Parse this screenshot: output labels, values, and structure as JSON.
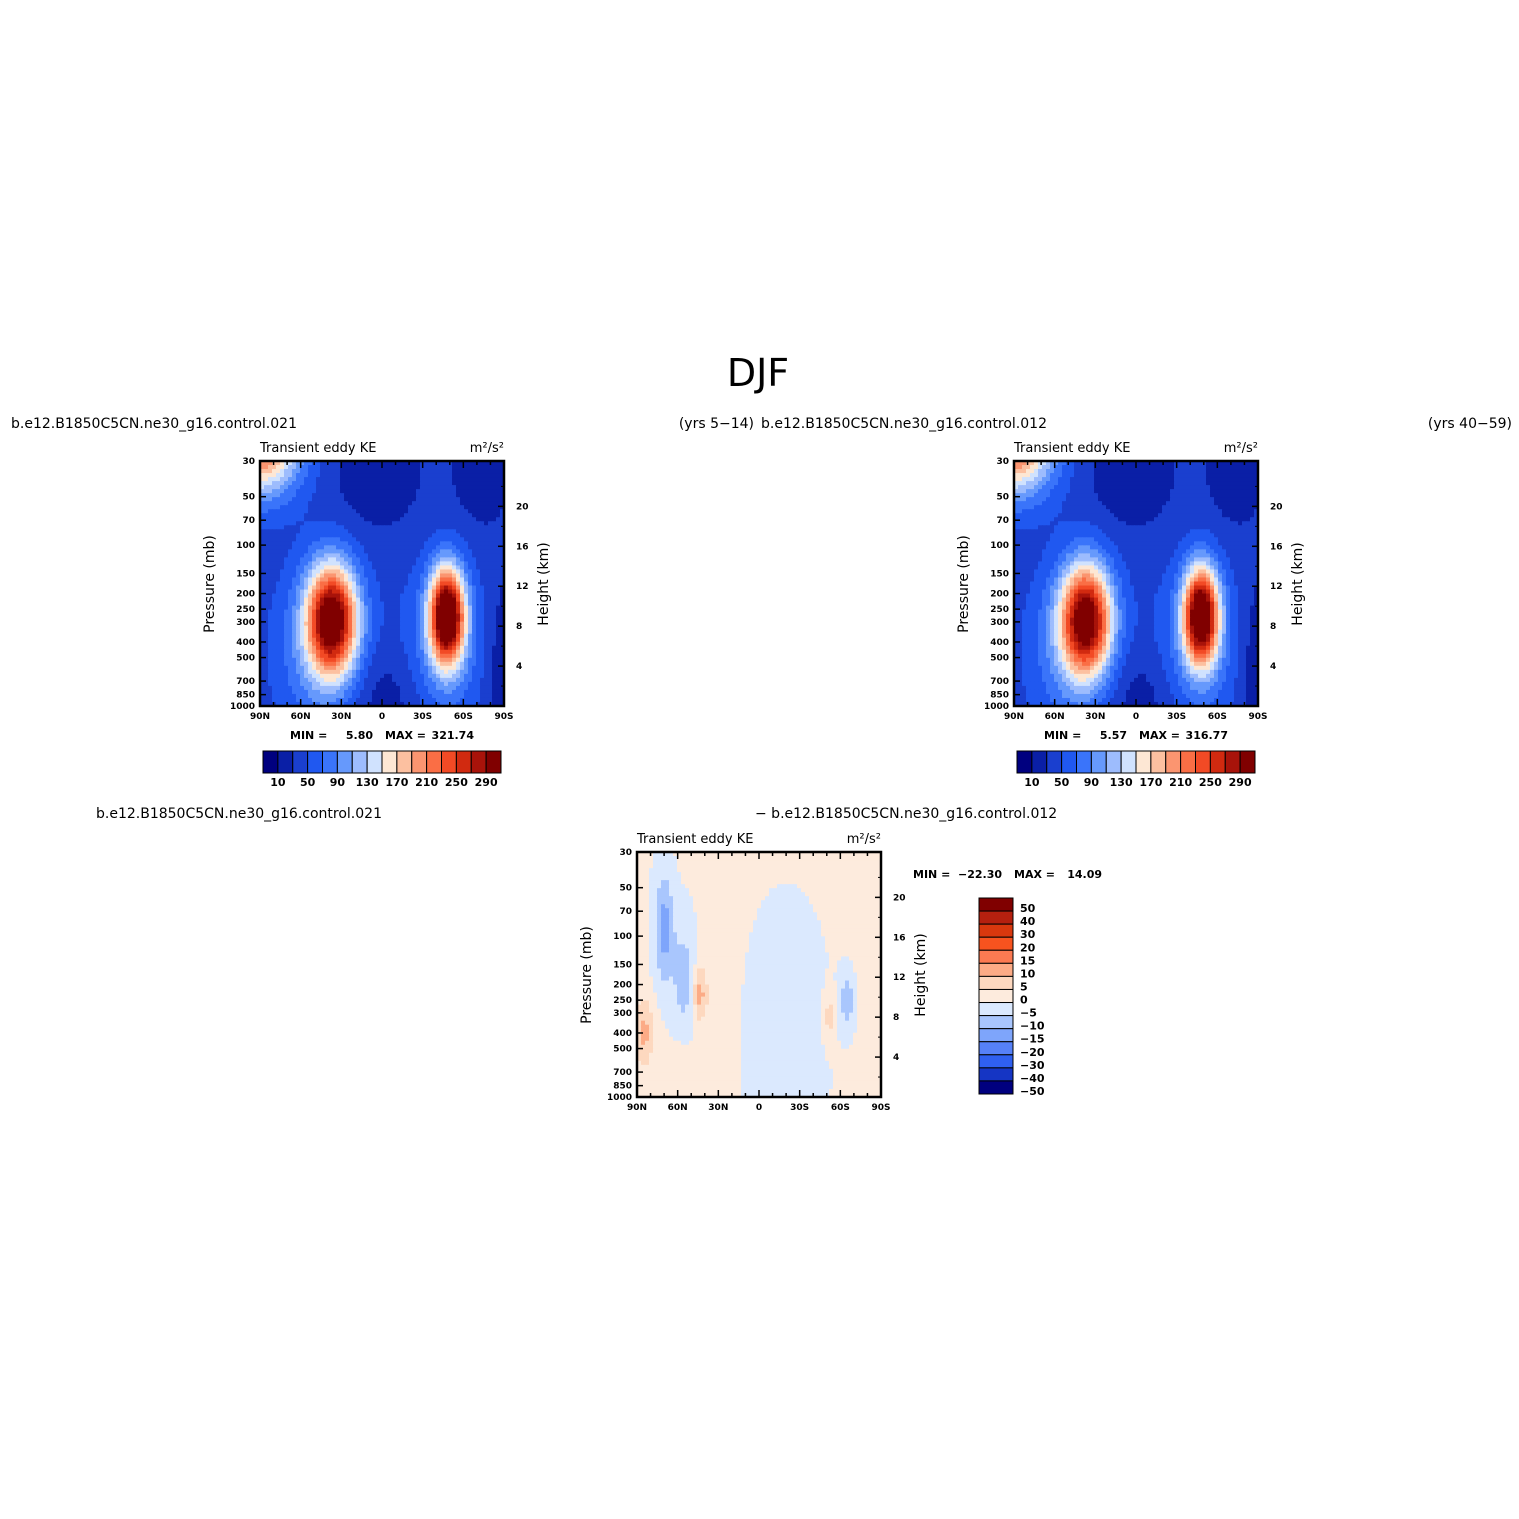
{
  "figure": {
    "title": "DJF",
    "panel1": {
      "case_name": "b.e12.B1850C5CN.ne30_g16.control.021",
      "years": "(yrs 5−14)",
      "variable": "Transient eddy KE",
      "units": "m²/s²",
      "min_label": "MIN =",
      "min_value": "5.80",
      "max_label": "MAX =",
      "max_value": "321.74"
    },
    "panel2": {
      "case_name": "b.e12.B1850C5CN.ne30_g16.control.012",
      "years": "(yrs 40−59)",
      "variable": "Transient eddy KE",
      "units": "m²/s²",
      "min_label": "MIN =",
      "min_value": "5.57",
      "max_label": "MAX =",
      "max_value": "316.77"
    },
    "panel3": {
      "case_name_left": "b.e12.B1850C5CN.ne30_g16.control.021",
      "case_name_right": "− b.e12.B1850C5CN.ne30_g16.control.012",
      "variable": "Transient eddy KE",
      "units": "m²/s²",
      "min_label": "MIN =",
      "min_value": "−22.30",
      "max_label": "MAX =",
      "max_value": "14.09"
    }
  },
  "chart_data": [
    {
      "type": "heatmap",
      "title": "Transient eddy KE",
      "units": "m²/s²",
      "xlabel": "",
      "ylabel": "Pressure (mb)",
      "ylabel_right": "Height (km)",
      "x_ticks": [
        "90N",
        "60N",
        "30N",
        "0",
        "30S",
        "60S",
        "90S"
      ],
      "y_ticks": [
        "30",
        "50",
        "70",
        "100",
        "150",
        "200",
        "250",
        "300",
        "400",
        "500",
        "700",
        "850",
        "1000"
      ],
      "y_ticks_right": [
        "20",
        "16",
        "12",
        "8",
        "4"
      ],
      "ylim": [
        1000,
        30
      ],
      "y_scale": "log",
      "min": 5.8,
      "max": 321.74,
      "colorbar_labels": [
        "10",
        "50",
        "90",
        "130",
        "170",
        "210",
        "250",
        "290"
      ],
      "colorbar_orientation": "horizontal",
      "maxima": [
        {
          "lat": "37N",
          "pressure": 280,
          "approx_value": 300
        },
        {
          "lat": "50S",
          "pressure": 270,
          "approx_value": 320
        },
        {
          "lat": "90N",
          "pressure": 30,
          "approx_value": 190
        }
      ]
    },
    {
      "type": "heatmap",
      "title": "Transient eddy KE",
      "units": "m²/s²",
      "xlabel": "",
      "ylabel": "Pressure (mb)",
      "ylabel_right": "Height (km)",
      "x_ticks": [
        "90N",
        "60N",
        "30N",
        "0",
        "30S",
        "60S",
        "90S"
      ],
      "y_ticks": [
        "30",
        "50",
        "70",
        "100",
        "150",
        "200",
        "250",
        "300",
        "400",
        "500",
        "700",
        "850",
        "1000"
      ],
      "y_ticks_right": [
        "20",
        "16",
        "12",
        "8",
        "4"
      ],
      "ylim": [
        1000,
        30
      ],
      "y_scale": "log",
      "min": 5.57,
      "max": 316.77,
      "colorbar_labels": [
        "10",
        "50",
        "90",
        "130",
        "170",
        "210",
        "250",
        "290"
      ],
      "colorbar_orientation": "horizontal",
      "maxima": [
        {
          "lat": "37N",
          "pressure": 280,
          "approx_value": 290
        },
        {
          "lat": "50S",
          "pressure": 270,
          "approx_value": 315
        },
        {
          "lat": "90N",
          "pressure": 30,
          "approx_value": 190
        }
      ]
    },
    {
      "type": "heatmap",
      "title": "Transient eddy KE",
      "units": "m²/s²",
      "xlabel": "",
      "ylabel": "Pressure (mb)",
      "ylabel_right": "Height (km)",
      "x_ticks": [
        "90N",
        "60N",
        "30N",
        "0",
        "30S",
        "60S",
        "90S"
      ],
      "y_ticks": [
        "30",
        "50",
        "70",
        "100",
        "150",
        "200",
        "250",
        "300",
        "400",
        "500",
        "700",
        "850",
        "1000"
      ],
      "y_ticks_right": [
        "20",
        "16",
        "12",
        "8",
        "4"
      ],
      "ylim": [
        1000,
        30
      ],
      "y_scale": "log",
      "min": -22.3,
      "max": 14.09,
      "colorbar_labels": [
        "50",
        "40",
        "30",
        "20",
        "15",
        "10",
        "5",
        "0",
        "−5",
        "−10",
        "−15",
        "−20",
        "−30",
        "−40",
        "−50"
      ],
      "colorbar_orientation": "vertical"
    }
  ],
  "colors": {
    "ke_scale": [
      "#00007f",
      "#0a1fa6",
      "#1a3fcf",
      "#2058f0",
      "#3a74fa",
      "#6699fc",
      "#9dbcfd",
      "#d0e2fe",
      "#fde7d4",
      "#fcc0a0",
      "#fb9570",
      "#fa6e45",
      "#f24a25",
      "#d12a10",
      "#a8130a",
      "#800000"
    ],
    "diff_scale": [
      "#800000",
      "#b5200f",
      "#d9380e",
      "#f7531f",
      "#fb7a52",
      "#fcab86",
      "#fdd8bf",
      "#fdebdd",
      "#dbe9fe",
      "#a9c6fd",
      "#7ea5fb",
      "#5681f8",
      "#2f60f0",
      "#1535c4",
      "#00007f"
    ]
  }
}
